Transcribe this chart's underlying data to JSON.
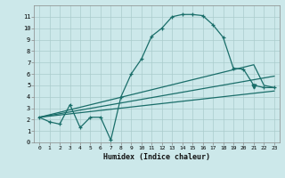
{
  "xlabel": "Humidex (Indice chaleur)",
  "bg_color": "#cce8ea",
  "grid_color": "#aacccc",
  "line_color": "#1a6e6a",
  "xlim": [
    -0.5,
    23.5
  ],
  "ylim": [
    0,
    12
  ],
  "xticks": [
    0,
    1,
    2,
    3,
    4,
    5,
    6,
    7,
    8,
    9,
    10,
    11,
    12,
    13,
    14,
    15,
    16,
    17,
    18,
    19,
    20,
    21,
    22,
    23
  ],
  "yticks": [
    0,
    1,
    2,
    3,
    4,
    5,
    6,
    7,
    8,
    9,
    10,
    11
  ],
  "curve_main_x": [
    0,
    1,
    2,
    3,
    4,
    5,
    6,
    7,
    8,
    9,
    10,
    11,
    12,
    13,
    14,
    15,
    16,
    17,
    18,
    19,
    20,
    21,
    22,
    23
  ],
  "curve_main_y": [
    2.2,
    1.8,
    1.6,
    3.3,
    1.3,
    2.2,
    2.2,
    0.2,
    4.0,
    6.0,
    7.3,
    9.3,
    10.0,
    11.0,
    11.2,
    11.2,
    11.1,
    10.3,
    9.2,
    6.5,
    6.4,
    5.0,
    4.8,
    4.8
  ],
  "line1_x": [
    0,
    23
  ],
  "line1_y": [
    2.2,
    4.5
  ],
  "line2_x": [
    0,
    23
  ],
  "line2_y": [
    2.2,
    5.8
  ],
  "line3_x": [
    0,
    21,
    22,
    23
  ],
  "line3_y": [
    2.2,
    6.8,
    5.0,
    4.8
  ],
  "triangle_x": 21,
  "triangle_y": 4.9
}
